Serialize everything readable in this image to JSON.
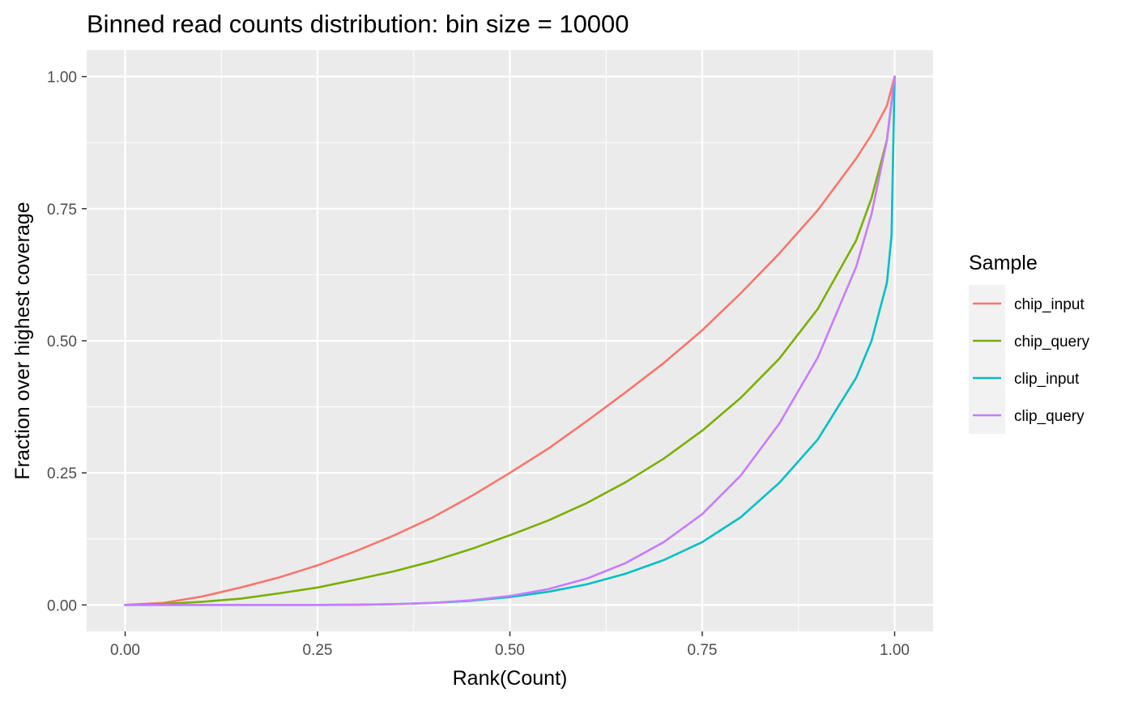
{
  "chart_data": {
    "type": "line",
    "title": "Binned read counts distribution: bin size = 10000",
    "xlabel": "Rank(Count)",
    "ylabel": "Fraction over highest coverage",
    "xlim": [
      -0.05,
      1.05
    ],
    "ylim": [
      -0.05,
      1.05
    ],
    "x_ticks": [
      0,
      0.25,
      0.5,
      0.75,
      1
    ],
    "x_tick_labels": [
      "0.00",
      "0.25",
      "0.50",
      "0.75",
      "1.00"
    ],
    "y_ticks": [
      0,
      0.25,
      0.5,
      0.75,
      1
    ],
    "y_tick_labels": [
      "0.00",
      "0.25",
      "0.50",
      "0.75",
      "1.00"
    ],
    "grid": true,
    "legend": {
      "title": "Sample",
      "position": "right"
    },
    "series": [
      {
        "name": "chip_input",
        "color": "#F8766D",
        "x": [
          0,
          0.05,
          0.1,
          0.15,
          0.2,
          0.25,
          0.3,
          0.35,
          0.4,
          0.45,
          0.5,
          0.55,
          0.6,
          0.65,
          0.7,
          0.75,
          0.8,
          0.85,
          0.9,
          0.95,
          0.97,
          0.99,
          1.0
        ],
        "y": [
          0,
          0.004,
          0.016,
          0.033,
          0.052,
          0.075,
          0.102,
          0.132,
          0.166,
          0.206,
          0.25,
          0.296,
          0.348,
          0.402,
          0.458,
          0.52,
          0.59,
          0.665,
          0.747,
          0.845,
          0.89,
          0.945,
          1.0
        ]
      },
      {
        "name": "chip_query",
        "color": "#7CAE00",
        "x": [
          0,
          0.05,
          0.1,
          0.15,
          0.2,
          0.25,
          0.3,
          0.35,
          0.4,
          0.45,
          0.5,
          0.55,
          0.6,
          0.65,
          0.7,
          0.75,
          0.8,
          0.85,
          0.9,
          0.95,
          0.97,
          0.99,
          1.0
        ],
        "y": [
          0,
          0.002,
          0.006,
          0.012,
          0.022,
          0.033,
          0.048,
          0.064,
          0.083,
          0.106,
          0.132,
          0.16,
          0.193,
          0.232,
          0.277,
          0.33,
          0.392,
          0.466,
          0.56,
          0.69,
          0.77,
          0.88,
          1.0
        ]
      },
      {
        "name": "clip_input",
        "color": "#00BFC4",
        "x": [
          0,
          0.05,
          0.1,
          0.15,
          0.2,
          0.25,
          0.3,
          0.35,
          0.4,
          0.45,
          0.5,
          0.55,
          0.6,
          0.65,
          0.7,
          0.75,
          0.8,
          0.85,
          0.9,
          0.95,
          0.97,
          0.99,
          0.996,
          1.0
        ],
        "y": [
          0,
          0,
          0,
          0,
          0,
          0,
          0.0005,
          0.0015,
          0.004,
          0.008,
          0.015,
          0.025,
          0.039,
          0.059,
          0.085,
          0.119,
          0.166,
          0.231,
          0.313,
          0.43,
          0.5,
          0.61,
          0.7,
          1.0
        ]
      },
      {
        "name": "clip_query",
        "color": "#C77CFF",
        "x": [
          0,
          0.05,
          0.1,
          0.15,
          0.2,
          0.25,
          0.3,
          0.35,
          0.4,
          0.45,
          0.5,
          0.55,
          0.6,
          0.65,
          0.7,
          0.75,
          0.8,
          0.85,
          0.9,
          0.95,
          0.97,
          0.99,
          1.0
        ],
        "y": [
          0,
          0,
          0,
          0,
          0,
          0,
          0.0003,
          0.0015,
          0.004,
          0.009,
          0.017,
          0.03,
          0.05,
          0.079,
          0.119,
          0.172,
          0.245,
          0.343,
          0.468,
          0.64,
          0.74,
          0.88,
          1.0
        ]
      }
    ]
  }
}
